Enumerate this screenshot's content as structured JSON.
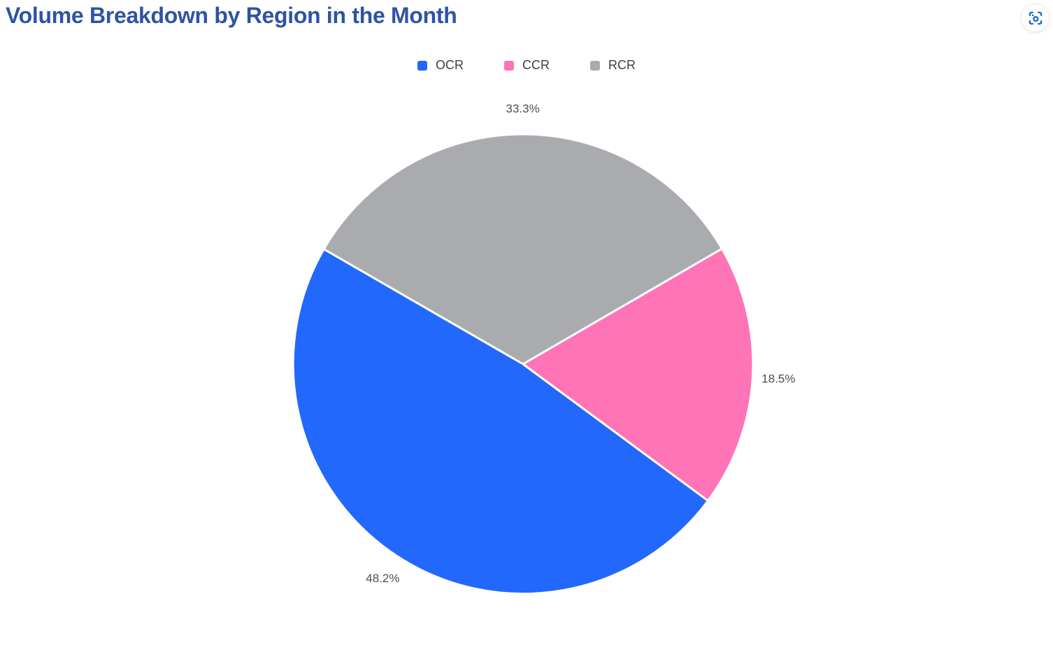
{
  "header": {
    "action_icon": "scan-capture-icon",
    "action_icon_color": "#1967d2"
  },
  "chart_data": {
    "type": "pie",
    "title": "Volume Breakdown by Region in the Month",
    "title_color": "#2d53a6",
    "slices": [
      {
        "name": "OCR",
        "value": 48.2,
        "label": "48.2%",
        "color": "#2268fc"
      },
      {
        "name": "CCR",
        "value": 18.5,
        "label": "18.5%",
        "color": "#fe74b6"
      },
      {
        "name": "RCR",
        "value": 33.3,
        "label": "33.3%",
        "color": "#a9abaf"
      }
    ],
    "total": 100,
    "legend": {
      "position": "top",
      "order": [
        "OCR",
        "CCR",
        "RCR"
      ],
      "text_color": "#3c4043"
    },
    "labels": {
      "position": "outside",
      "color": "#4d4d4d"
    },
    "layout": {
      "start_angle_deg": -150,
      "direction": "clockwise",
      "draw_order": [
        "RCR",
        "CCR",
        "OCR"
      ]
    }
  }
}
